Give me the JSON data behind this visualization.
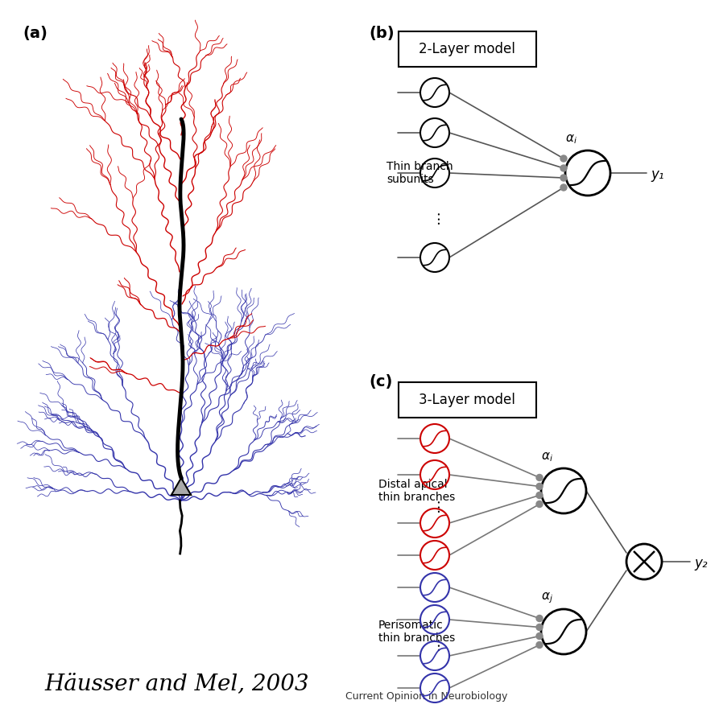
{
  "title": "Häusser and Mel, 2003",
  "title_fontsize": 20,
  "subtitle": "Current Opinion in Neurobiology",
  "subtitle_fontsize": 10,
  "bg_color": "#ffffff",
  "panel_a_label": "(a)",
  "panel_b_label": "(b)",
  "panel_c_label": "(c)",
  "panel_b_title": "2-Layer model",
  "panel_c_title": "3-Layer model",
  "thin_branch_label": "Thin branch\nsubunits",
  "distal_apical_label": "Distal apical\nthin branches",
  "perisomatic_label": "Perisomatic\nthin branches",
  "y1_label": "y₁",
  "y2_label": "y₂",
  "alpha_i_label": "αᵢ",
  "alpha_j_label": "αⱼ",
  "red_color": "#cc0000",
  "blue_color": "#3333aa",
  "black_color": "#000000",
  "gray_color": "#888888",
  "dot_color": "#888888"
}
